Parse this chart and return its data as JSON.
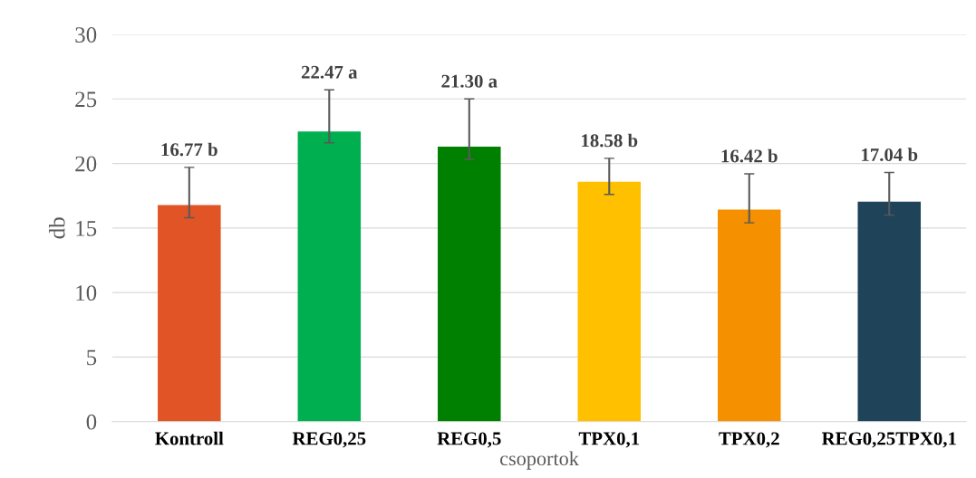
{
  "chart_data": {
    "type": "bar",
    "xlabel": "csoportok",
    "ylabel": "db",
    "categories": [
      "Kontroll",
      "REG0,25",
      "REG0,5",
      "TPX0,1",
      "TPX0,2",
      "REG0,25TPX0,1"
    ],
    "values": [
      16.77,
      22.47,
      21.3,
      18.58,
      16.42,
      17.04
    ],
    "colors": [
      "#e05426",
      "#00b050",
      "#008000",
      "#ffc000",
      "#f59100",
      "#1f4359"
    ],
    "errors": [
      [
        15.8,
        19.7
      ],
      [
        21.6,
        25.7
      ],
      [
        20.3,
        25.0
      ],
      [
        17.6,
        20.4
      ],
      [
        15.4,
        19.2
      ],
      [
        16.0,
        19.3
      ]
    ],
    "value_labels": [
      "16.77 b",
      "22.47 a",
      "21.30 a",
      "18.58 b",
      "16.42 b",
      "17.04 b"
    ],
    "ylim": [
      0,
      30
    ],
    "yticks": [
      0,
      5,
      10,
      15,
      20,
      25,
      30
    ],
    "grid": "y"
  }
}
